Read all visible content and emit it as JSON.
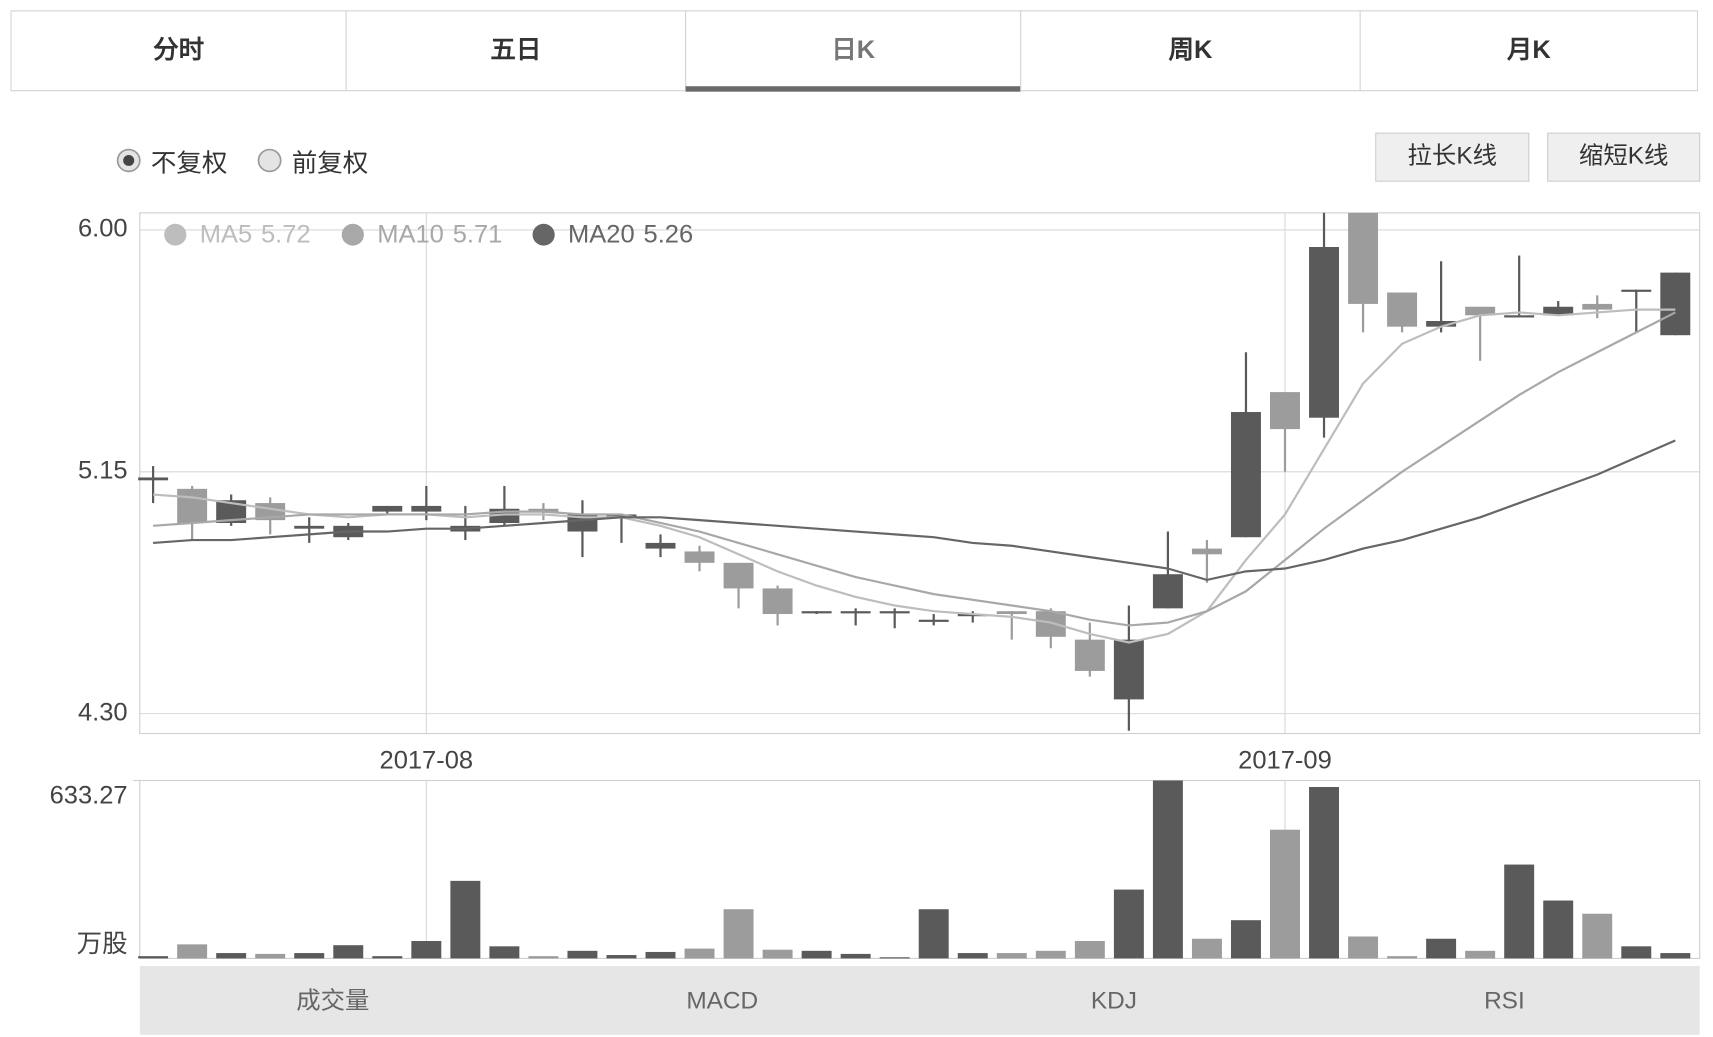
{
  "tabs": [
    {
      "label": "分时",
      "selected": false
    },
    {
      "label": "五日",
      "selected": false
    },
    {
      "label": "日K",
      "selected": true
    },
    {
      "label": "周K",
      "selected": false
    },
    {
      "label": "月K",
      "selected": false
    }
  ],
  "adjust_options": [
    {
      "label": "不复权",
      "selected": true
    },
    {
      "label": "前复权",
      "selected": false
    }
  ],
  "buttons": [
    "拉长K线",
    "缩短K线"
  ],
  "indicator_tabs": [
    "成交量",
    "MACD",
    "KDJ",
    "RSI"
  ],
  "chart_data": [
    {
      "type": "candlestick",
      "categories": [
        null,
        null,
        null,
        null,
        null,
        null,
        null,
        "2017-08",
        null,
        null,
        null,
        null,
        null,
        null,
        null,
        null,
        null,
        null,
        null,
        null,
        null,
        null,
        null,
        null,
        null,
        null,
        null,
        null,
        null,
        "2017-09",
        null,
        null,
        null,
        null,
        null,
        null,
        null,
        null,
        null,
        null
      ],
      "open": [
        5.12,
        5.09,
        4.97,
        5.04,
        4.95,
        4.92,
        5.01,
        5.01,
        4.94,
        4.97,
        5.02,
        4.94,
        5.0,
        4.88,
        4.87,
        4.83,
        4.74,
        4.66,
        4.66,
        4.66,
        4.63,
        4.65,
        4.66,
        4.66,
        4.56,
        4.35,
        4.67,
        4.88,
        4.92,
        5.43,
        5.34,
        6.06,
        5.78,
        5.66,
        5.73,
        5.7,
        5.7,
        5.74,
        5.79,
        5.63
      ],
      "high": [
        5.17,
        5.1,
        5.07,
        5.06,
        4.99,
        4.97,
        5.03,
        5.1,
        5.03,
        5.1,
        5.04,
        5.05,
        5.0,
        4.93,
        4.89,
        4.83,
        4.75,
        4.66,
        4.67,
        4.67,
        4.65,
        4.66,
        4.66,
        4.67,
        4.62,
        4.68,
        4.94,
        4.91,
        5.57,
        5.43,
        6.06,
        6.06,
        5.78,
        5.89,
        5.73,
        5.91,
        5.75,
        5.77,
        5.79,
        5.85
      ],
      "low": [
        5.04,
        4.91,
        4.96,
        4.93,
        4.9,
        4.91,
        5.0,
        4.98,
        4.91,
        4.96,
        4.98,
        4.85,
        4.9,
        4.85,
        4.8,
        4.67,
        4.61,
        4.65,
        4.61,
        4.6,
        4.61,
        4.62,
        4.56,
        4.53,
        4.43,
        4.24,
        4.67,
        4.76,
        4.92,
        5.15,
        5.27,
        5.64,
        5.64,
        5.64,
        5.54,
        5.7,
        5.7,
        5.69,
        5.64,
        5.63
      ],
      "close": [
        5.13,
        4.97,
        5.05,
        4.98,
        4.96,
        4.96,
        5.03,
        5.03,
        4.96,
        5.02,
        5.01,
        5.0,
        5.0,
        4.9,
        4.83,
        4.74,
        4.65,
        4.66,
        4.66,
        4.66,
        4.63,
        4.65,
        4.65,
        4.57,
        4.45,
        4.56,
        4.79,
        4.86,
        5.36,
        5.3,
        5.94,
        5.74,
        5.66,
        5.68,
        5.7,
        5.7,
        5.73,
        5.72,
        5.79,
        5.85
      ],
      "up_color": "#5a5a5a",
      "down_color": "#9c9c9c",
      "ylim": [
        4.23,
        6.06
      ],
      "yticks": [
        {
          "value": 6,
          "label": "6.00"
        },
        5.15,
        {
          "value": 4.3,
          "label": "4.30"
        }
      ],
      "grid": true,
      "series": [
        {
          "name": "MA5",
          "color": "#bdbdbd",
          "values": [
            5.07,
            5.06,
            5.04,
            5.02,
            5.0,
            4.99,
            5.0,
            5.0,
            4.99,
            5.0,
            5.0,
            4.99,
            4.99,
            4.96,
            4.92,
            4.86,
            4.8,
            4.75,
            4.71,
            4.68,
            4.66,
            4.65,
            4.64,
            4.62,
            4.58,
            4.55,
            4.58,
            4.66,
            4.84,
            5.0,
            5.23,
            5.46,
            5.6,
            5.66,
            5.7,
            5.71,
            5.7,
            5.71,
            5.72,
            5.72
          ]
        },
        {
          "name": "MA10",
          "color": "#a8a8a8",
          "values": [
            4.96,
            4.97,
            4.98,
            4.99,
            5.0,
            5.0,
            5.0,
            5.0,
            5.0,
            5.01,
            5.01,
            5.0,
            5.0,
            4.97,
            4.94,
            4.9,
            4.86,
            4.82,
            4.78,
            4.75,
            4.72,
            4.7,
            4.68,
            4.66,
            4.63,
            4.61,
            4.62,
            4.66,
            4.73,
            4.84,
            4.95,
            5.05,
            5.15,
            5.24,
            5.33,
            5.42,
            5.5,
            5.57,
            5.64,
            5.71
          ]
        },
        {
          "name": "MA20",
          "color": "#666666",
          "values": [
            4.9,
            4.91,
            4.91,
            4.92,
            4.93,
            4.94,
            4.94,
            4.95,
            4.95,
            4.96,
            4.97,
            4.98,
            4.99,
            4.99,
            4.98,
            4.97,
            4.96,
            4.95,
            4.94,
            4.93,
            4.92,
            4.9,
            4.89,
            4.87,
            4.85,
            4.83,
            4.81,
            4.77,
            4.8,
            4.81,
            4.84,
            4.88,
            4.91,
            4.95,
            4.99,
            5.04,
            5.09,
            5.14,
            5.2,
            5.26
          ]
        }
      ]
    },
    {
      "type": "bar",
      "values": [
        8,
        50,
        19,
        16,
        19,
        47,
        8,
        62,
        276,
        43,
        8,
        27,
        12,
        23,
        35,
        175,
        31,
        27,
        16,
        4,
        175,
        19,
        19,
        27,
        62,
        245,
        633.27,
        70,
        136,
        458,
        610,
        78,
        8,
        70,
        27,
        334,
        206,
        159,
        43,
        19
      ],
      "ylim": [
        0,
        633.27
      ],
      "yticks": [
        {
          "value": 633.27,
          "label": "633.27"
        }
      ],
      "unit": "万股"
    }
  ]
}
